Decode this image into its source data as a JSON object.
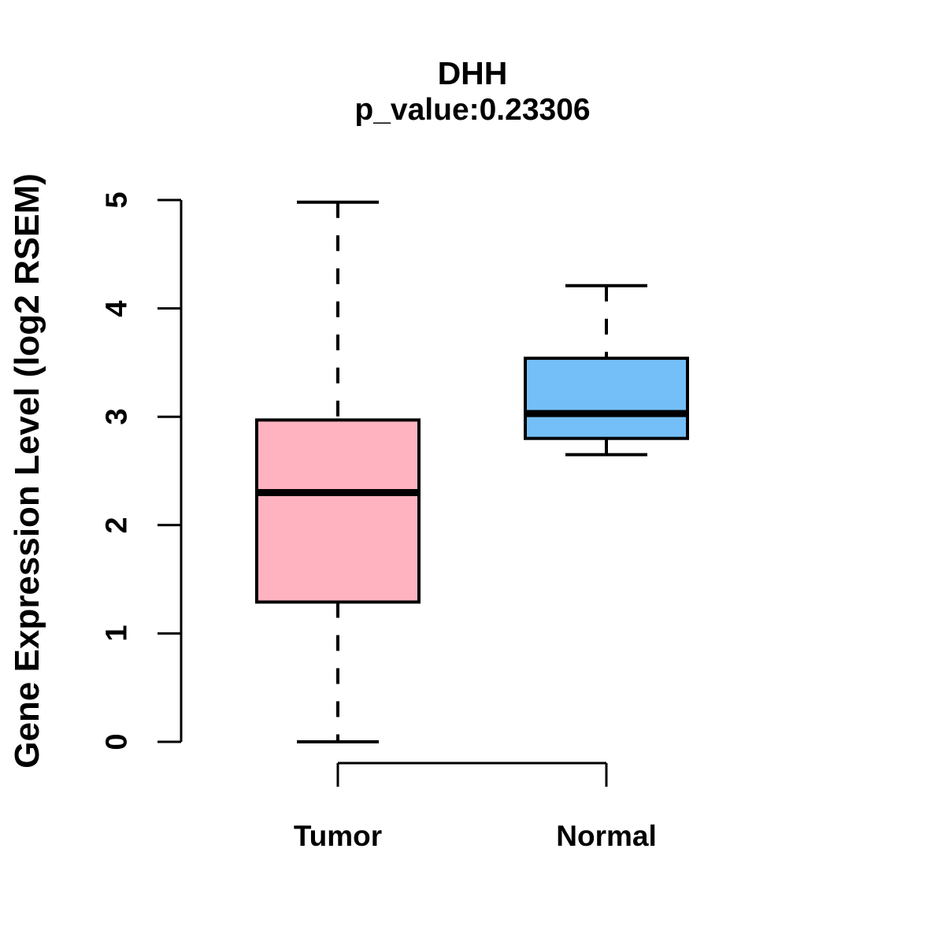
{
  "chart_data": {
    "type": "boxplot",
    "title": "DHH",
    "subtitle": "p_value:0.23306",
    "ylabel": "Gene Expression Level (log2 RSEM)",
    "xlabel": "",
    "ylim": [
      0,
      5
    ],
    "yticks": [
      "0",
      "1",
      "2",
      "3",
      "4",
      "5"
    ],
    "categories": [
      "Tumor",
      "Normal"
    ],
    "series": [
      {
        "name": "Tumor",
        "fill_color": "#FFB3C1",
        "min": 0,
        "q1": 1.29,
        "median": 2.3,
        "q3": 2.97,
        "max": 4.98
      },
      {
        "name": "Normal",
        "fill_color": "#74BFF8",
        "min": 2.65,
        "q1": 2.8,
        "median": 3.03,
        "q3": 3.54,
        "max": 4.21
      }
    ],
    "stroke_color": "#000000",
    "legend_position": "none",
    "grid": "off"
  }
}
